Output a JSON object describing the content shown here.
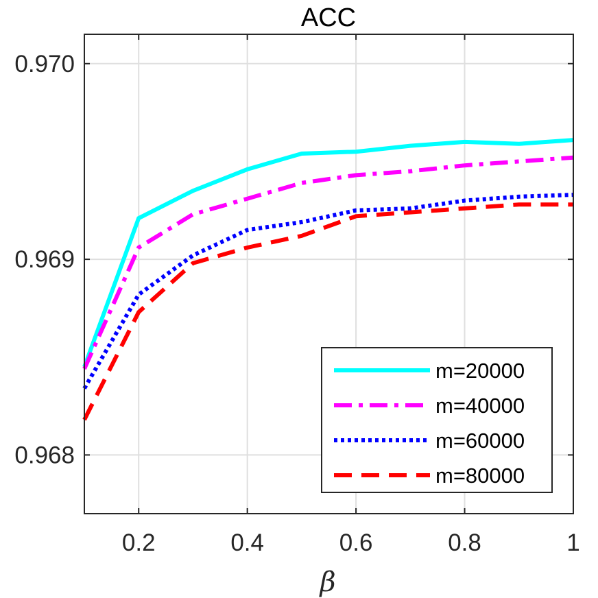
{
  "chart_data": {
    "type": "line",
    "title": "ACC",
    "xlabel": "β",
    "ylabel": "",
    "xlim": [
      0.1,
      1.0
    ],
    "ylim": [
      0.9677,
      0.97015
    ],
    "grid": true,
    "legend_location": "bottom-right",
    "x": [
      0.1,
      0.2,
      0.3,
      0.4,
      0.5,
      0.6,
      0.7,
      0.8,
      0.9,
      1.0
    ],
    "xticks": [
      0.2,
      0.4,
      0.6,
      0.8,
      1.0
    ],
    "xtick_labels": [
      "0.2",
      "0.4",
      "0.6",
      "0.8",
      "1"
    ],
    "yticks": [
      0.968,
      0.969,
      0.97
    ],
    "ytick_labels": [
      "0.968",
      "0.969",
      "0.970"
    ],
    "series": [
      {
        "name": "m=20000",
        "color": "#00FFFF",
        "style": "solid",
        "values": [
          0.96845,
          0.96921,
          0.96935,
          0.96946,
          0.96954,
          0.96955,
          0.96958,
          0.9696,
          0.96959,
          0.96961
        ]
      },
      {
        "name": "m=40000",
        "color": "#FF00FF",
        "style": "dashdot",
        "values": [
          0.96844,
          0.96906,
          0.96923,
          0.96931,
          0.96939,
          0.96943,
          0.96945,
          0.96948,
          0.9695,
          0.96952
        ]
      },
      {
        "name": "m=60000",
        "color": "#0000FF",
        "style": "dotted",
        "values": [
          0.96834,
          0.96882,
          0.96902,
          0.96915,
          0.96919,
          0.96925,
          0.96926,
          0.9693,
          0.96932,
          0.96933
        ]
      },
      {
        "name": "m=80000",
        "color": "#FF0000",
        "style": "dashed",
        "values": [
          0.96818,
          0.96873,
          0.96898,
          0.96906,
          0.96912,
          0.96922,
          0.96924,
          0.96926,
          0.96928,
          0.96928
        ]
      }
    ]
  }
}
